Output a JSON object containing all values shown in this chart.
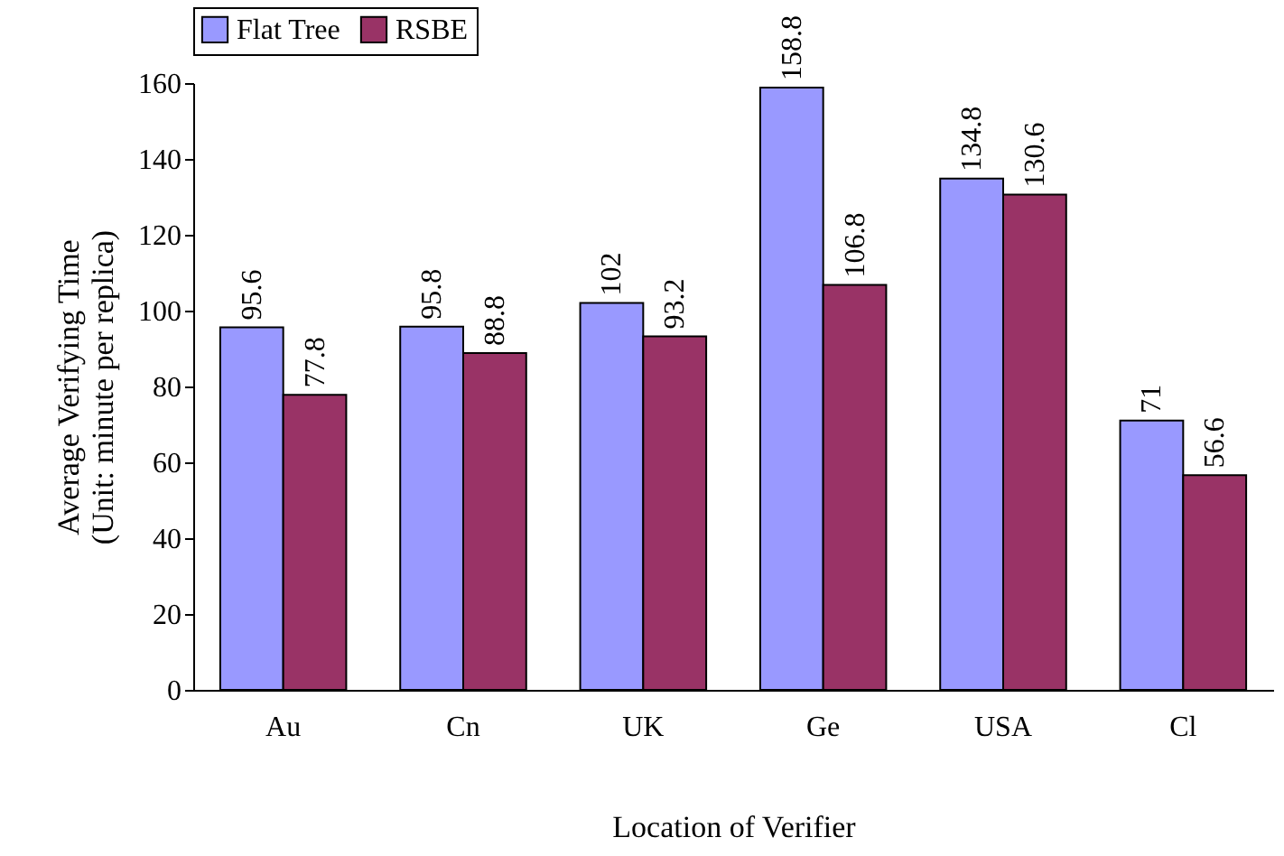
{
  "chart_data": {
    "type": "bar",
    "xlabel": "Location of Verifier",
    "ylabel": "Average Verifying Time\n(Unit: minute per replica)",
    "categories": [
      "Au",
      "Cn",
      "UK",
      "Ge",
      "USA",
      "Cl"
    ],
    "series": [
      {
        "name": "Flat Tree",
        "color": "#9999ff",
        "values": [
          95.6,
          95.8,
          102,
          158.8,
          134.8,
          71
        ]
      },
      {
        "name": "RSBE",
        "color": "#993366",
        "values": [
          77.8,
          88.8,
          93.2,
          106.8,
          130.6,
          56.6
        ]
      }
    ],
    "ylim": [
      0,
      160
    ],
    "yticks": [
      0,
      20,
      40,
      60,
      80,
      100,
      120,
      140,
      160
    ],
    "grid": false,
    "legend": "top left",
    "data_labels": true
  }
}
